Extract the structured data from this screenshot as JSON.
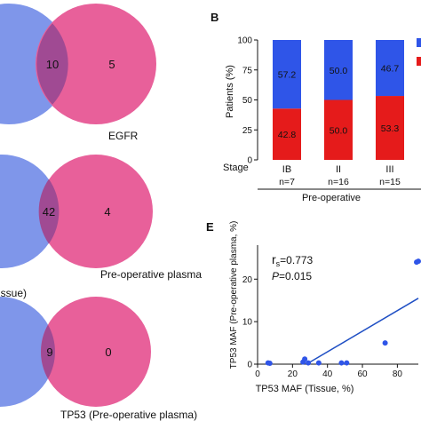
{
  "venns": [
    {
      "overlap": "10",
      "right_only": "5",
      "right_label": "EGFR",
      "left_label": ""
    },
    {
      "overlap": "42",
      "right_only": "4",
      "right_label": "Pre-operative plasma",
      "left_label": "issue)"
    },
    {
      "overlap": "9",
      "right_only": "0",
      "right_label": "TP53 (Pre-operative plasma)",
      "left_label": ""
    }
  ],
  "colors": {
    "blue": "#2f55e8",
    "red": "#e51b1b",
    "venn_left": "#7f96ea",
    "venn_right": "#e8609a",
    "venn_overlap": "#a04a93",
    "fit_line": "#1f4fc4"
  },
  "chart_data": [
    {
      "type": "bar",
      "panel_label": "B",
      "title": "",
      "ylabel": "Patients (%)",
      "ylim": [
        0,
        100
      ],
      "yticks": [
        "0",
        "25",
        "50",
        "75",
        "100"
      ],
      "stage_label": "Stage",
      "categories": [
        "IB",
        "II",
        "III"
      ],
      "n_labels": [
        "n=7",
        "n=16",
        "n=15"
      ],
      "group_label": "Pre-operative",
      "stacked": true,
      "series": [
        {
          "color": "#e51b1b",
          "values": [
            42.8,
            50.0,
            53.3
          ],
          "labels": [
            "42.8",
            "50.0",
            "53.3"
          ]
        },
        {
          "color": "#2f55e8",
          "values": [
            57.2,
            50.0,
            46.7
          ],
          "labels": [
            "57.2",
            "50.0",
            "46.7"
          ]
        }
      ]
    },
    {
      "type": "scatter",
      "panel_label": "E",
      "xlabel": "TP53 MAF (Tissue, %)",
      "ylabel": "TP53 MAF (Pre-operative plasma, %)",
      "xlim": [
        0,
        92
      ],
      "ylim": [
        0,
        28
      ],
      "xticks": [
        "0",
        "20",
        "40",
        "60",
        "80"
      ],
      "yticks": [
        "0",
        "10",
        "20"
      ],
      "annotation_r": "r",
      "annotation_r_sub": "s",
      "annotation_r_value": "=0.773",
      "annotation_p": "P",
      "annotation_p_value": "=0.015",
      "points": [
        {
          "x": 6,
          "y": 0.3
        },
        {
          "x": 7,
          "y": 0.2
        },
        {
          "x": 26,
          "y": 0.5
        },
        {
          "x": 27,
          "y": 1.2
        },
        {
          "x": 29,
          "y": 0.3
        },
        {
          "x": 35,
          "y": 0.3
        },
        {
          "x": 48,
          "y": 0.3
        },
        {
          "x": 51,
          "y": 0.3
        },
        {
          "x": 73,
          "y": 5.0
        },
        {
          "x": 91,
          "y": 24.0
        },
        {
          "x": 92,
          "y": 24.2
        }
      ],
      "fit_line": {
        "x": [
          28,
          92
        ],
        "y": [
          0,
          15.5
        ]
      }
    }
  ]
}
